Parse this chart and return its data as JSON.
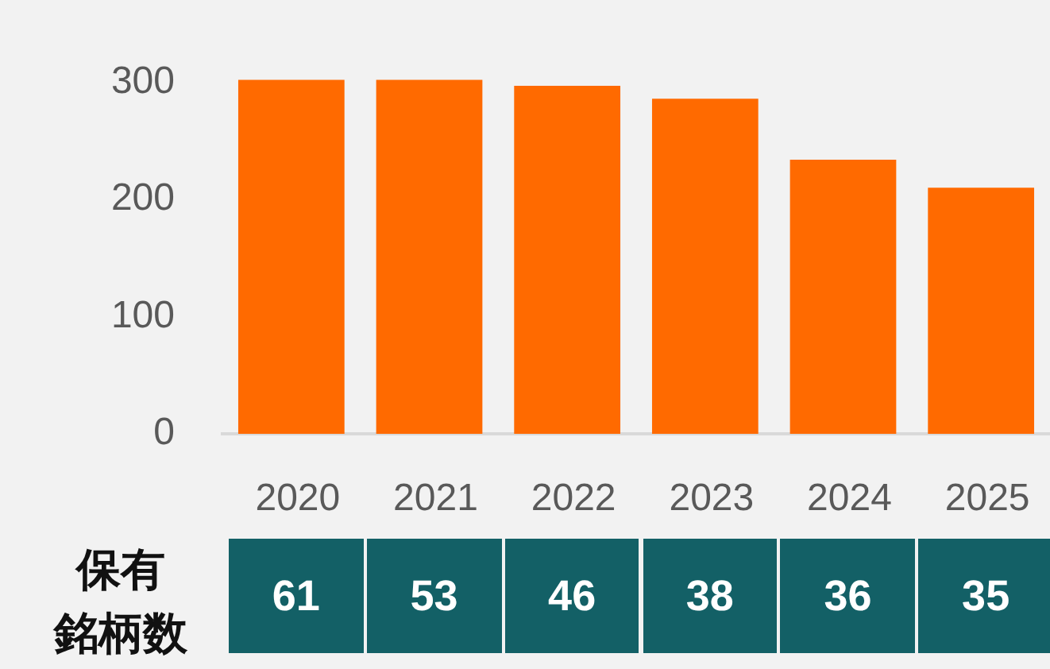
{
  "chart_data": [
    {
      "type": "bar",
      "categories": [
        "2020",
        "2021",
        "2022",
        "2023",
        "2024",
        "2025"
      ],
      "values": [
        302,
        302,
        297,
        286,
        234,
        210
      ],
      "color": "#ff6a00",
      "ylim": [
        0,
        310
      ],
      "yticks": [
        0,
        100,
        200,
        300
      ],
      "grid": false,
      "legend": false,
      "tick_labels": "y"
    },
    {
      "type": "heatmap",
      "categories": [
        "2020",
        "2021",
        "2022",
        "2023",
        "2024",
        "2025"
      ],
      "y_categories": [
        "保有銘柄数"
      ],
      "cells": [
        [
          61,
          53,
          46,
          38,
          36,
          35
        ]
      ],
      "color": "#136066",
      "data_labels": true
    }
  ]
}
